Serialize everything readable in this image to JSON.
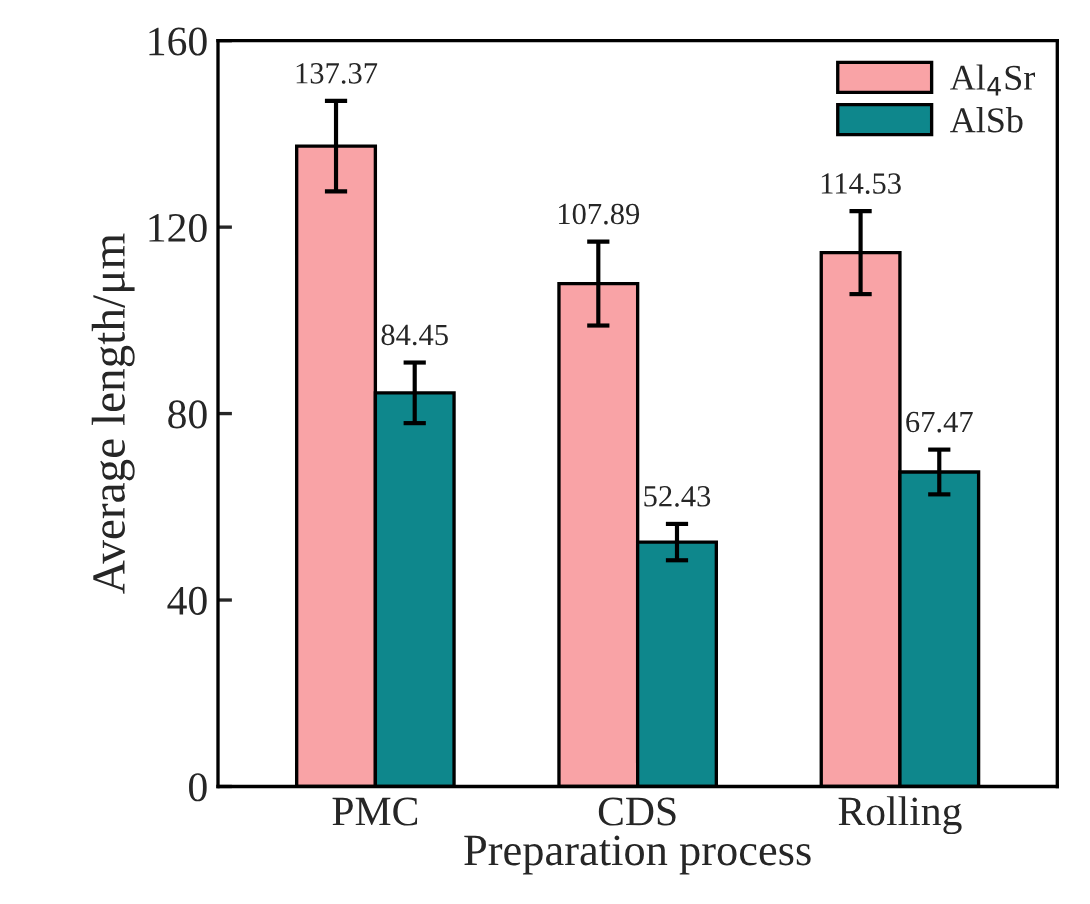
{
  "chart_data": {
    "type": "bar",
    "xlabel": "Preparation process",
    "ylabel": "Average length/μm",
    "categories": [
      "PMC",
      "CDS",
      "Rolling"
    ],
    "series": [
      {
        "name": "Al$_{4}$Sr",
        "color": "#f9a3a6",
        "values": [
          137.37,
          107.89,
          114.53
        ],
        "errors": [
          9.7,
          9.0,
          8.9
        ]
      },
      {
        "name": "AlSb",
        "color": "#0e878c",
        "values": [
          84.45,
          52.43,
          67.47
        ],
        "errors": [
          6.5,
          3.9,
          4.8
        ]
      }
    ],
    "ylim": [
      0,
      160
    ],
    "yticks": [
      0,
      40,
      80,
      120,
      160
    ],
    "data_labels": true,
    "legend": "top right",
    "grid": false
  }
}
